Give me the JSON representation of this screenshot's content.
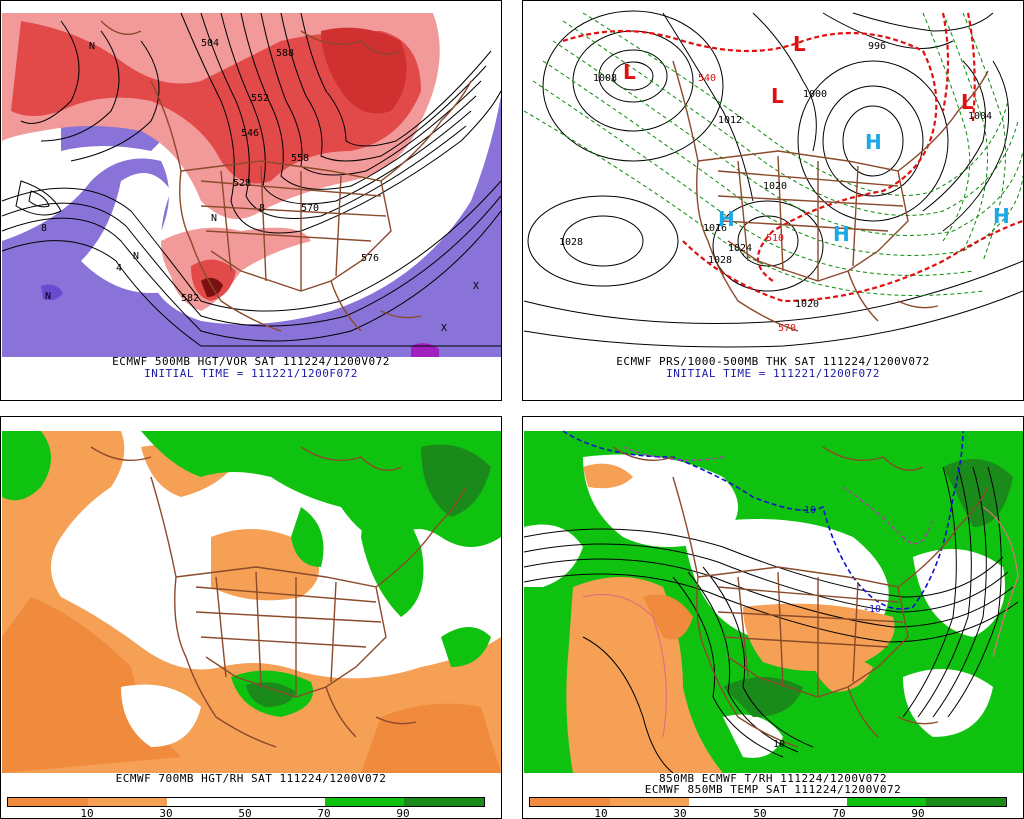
{
  "colors": {
    "vort_red_light": "#f29999",
    "vort_red": "#e24a4a",
    "vort_red_dark": "#7a1010",
    "vort_purple": "#8a73d8",
    "rh_orange": "#f5a055",
    "rh_orange_dark": "#f08a3c",
    "rh_green": "#10c210",
    "rh_green_dark": "#1a8a1a",
    "border_brown": "#8b4a2b",
    "contour_black": "#000000",
    "thk_red": "#e01010",
    "thk_green": "#0a8a0a",
    "h_cyan": "#1aa8e6",
    "temp_blue": "#1010d0",
    "temp_magenta": "#d020d0"
  },
  "panels": [
    {
      "id": "500mb",
      "caption": "ECMWF 500MB HGT/VOR SAT 111224/1200V072",
      "initial": "INITIAL TIME = 111221/1200F072",
      "labels": [
        "504",
        "552",
        "528",
        "546",
        "570",
        "576",
        "582",
        "558",
        "588",
        "8",
        "8",
        "4",
        "N",
        "N",
        "N",
        "X",
        "X",
        "N"
      ]
    },
    {
      "id": "prs",
      "caption": "ECMWF PRS/1000-500MB THK SAT 111224/1200V072",
      "initial": "INITIAL TIME = 111221/1200F072",
      "labels": [
        "1008",
        "1012",
        "1000",
        "1004",
        "996",
        "1020",
        "1028",
        "1024",
        "1020",
        "510",
        "570",
        "540",
        "1016",
        "1028"
      ],
      "lows": [
        "L",
        "L",
        "L",
        "L"
      ],
      "highs": [
        "H",
        "H",
        "H",
        "H"
      ]
    },
    {
      "id": "700mb",
      "caption": "ECMWF 700MB HGT/RH SAT 111224/1200V072",
      "colorbar_ticks": [
        "10",
        "30",
        "50",
        "70",
        "90"
      ]
    },
    {
      "id": "850mb",
      "caption": "850MB ECMWF T/RH 111224/1200V072",
      "caption2": "ECMWF 850MB TEMP SAT 111224/1200V072",
      "labels": [
        "-10",
        "-10",
        "10"
      ],
      "colorbar_ticks": [
        "10",
        "30",
        "50",
        "70",
        "90"
      ]
    }
  ]
}
